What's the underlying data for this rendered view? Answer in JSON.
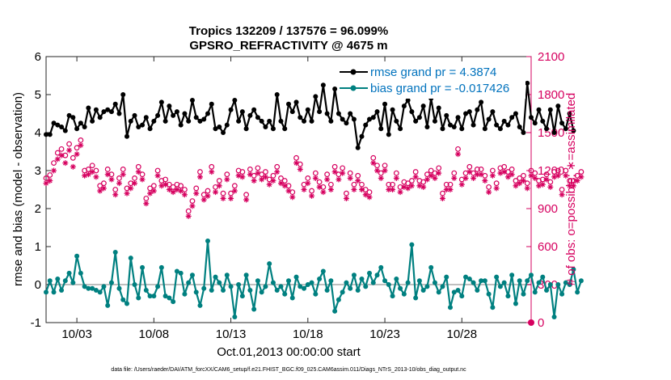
{
  "chart_data": {
    "type": "line",
    "title": "Tropics 132209 / 137576 = 96.099%",
    "subtitle": "GPSRO_REFRACTIVITY @ 4675 m",
    "xlabel": "Oct.01,2013 00:00:00 start",
    "ylabel_left": "rmse and bias (model - observation)",
    "ylabel_right": "# of obs: o=possible; ∗=assimilated",
    "footnote": "data file: /Users/raeder/DAI/ATM_forcXX/CAM6_setup/f.e21.FHIST_BGC.f09_025.CAM6assim.011/Diags_NTrS_2013-10/obs_diag_output.nc",
    "xlim": [
      1,
      32.5
    ],
    "ylim_left": [
      -1,
      6
    ],
    "ylim_right": [
      0,
      2100
    ],
    "x_ticks": [
      3,
      8,
      13,
      18,
      23,
      28
    ],
    "x_tick_labels": [
      "10/03",
      "10/08",
      "10/13",
      "10/18",
      "10/23",
      "10/28"
    ],
    "y_left_ticks": [
      -1,
      0,
      1,
      2,
      3,
      4,
      5,
      6
    ],
    "y_left_tick_labels": [
      "-1",
      "0",
      "1",
      "2",
      "3",
      "4",
      "5",
      "6"
    ],
    "y_right_ticks": [
      0,
      300,
      600,
      900,
      1200,
      1500,
      1800,
      2100
    ],
    "y_right_tick_labels": [
      "0",
      "300",
      "600",
      "900",
      "1200",
      "1500",
      "1800",
      "2100"
    ],
    "legend_position": "top-right",
    "x_start": 1.0,
    "x_step": 0.25,
    "series": [
      {
        "name": "rmse grand pr = 4.3874",
        "axis": "left",
        "color": "#000000",
        "marker": "filled-circle",
        "values": [
          3.95,
          3.95,
          4.25,
          4.2,
          4.15,
          4.05,
          4.45,
          4.4,
          4.1,
          4.25,
          4.15,
          4.65,
          4.3,
          4.6,
          4.4,
          4.55,
          4.6,
          4.55,
          4.75,
          4.5,
          5.0,
          3.9,
          4.3,
          4.45,
          4.15,
          4.2,
          4.4,
          4.1,
          4.3,
          4.45,
          4.8,
          4.3,
          4.7,
          4.45,
          4.55,
          4.2,
          4.5,
          4.3,
          4.85,
          4.4,
          4.3,
          4.35,
          4.5,
          4.75,
          4.1,
          4.15,
          4.0,
          4.2,
          4.6,
          4.85,
          4.3,
          4.55,
          4.1,
          4.45,
          4.6,
          4.4,
          4.3,
          4.15,
          4.3,
          4.1,
          5.0,
          4.3,
          4.1,
          4.75,
          4.55,
          4.8,
          4.4,
          4.3,
          4.6,
          4.3,
          4.95,
          4.55,
          5.25,
          4.5,
          4.3,
          5.15,
          4.5,
          4.35,
          4.25,
          4.5,
          4.35,
          3.6,
          3.9,
          4.2,
          4.35,
          4.4,
          4.55,
          4.1,
          4.75,
          3.95,
          4.6,
          4.3,
          4.1,
          4.7,
          4.85,
          4.55,
          4.3,
          4.4,
          4.7,
          4.15,
          4.9,
          4.3,
          4.65,
          4.1,
          4.45,
          4.2,
          4.15,
          4.4,
          4.1,
          4.5,
          4.55,
          4.2,
          4.6,
          4.8,
          4.1,
          4.35,
          4.55,
          4.2,
          4.1,
          4.3,
          4.2,
          4.4,
          4.5,
          4.15,
          4.0,
          5.3,
          4.4,
          4.25,
          4.6,
          4.3,
          4.1,
          4.6,
          4.0,
          4.7,
          4.25,
          4.1,
          4.5,
          4.05
        ]
      },
      {
        "name": "bias grand pr = -0.017426",
        "axis": "left",
        "color": "#008080",
        "marker": "filled-circle",
        "values": [
          -0.2,
          0.1,
          -0.2,
          0.15,
          -0.15,
          0.1,
          0.3,
          0.05,
          0.75,
          0.3,
          -0.05,
          -0.1,
          -0.1,
          -0.15,
          -0.2,
          -0.05,
          -0.55,
          0.05,
          0.85,
          -0.1,
          -0.4,
          -0.5,
          0.7,
          0.0,
          -0.35,
          0.45,
          -0.15,
          -0.3,
          -0.3,
          -0.05,
          0.45,
          -0.3,
          -0.35,
          -0.45,
          0.35,
          0.3,
          -0.25,
          0.05,
          0.25,
          -0.2,
          -0.55,
          -0.1,
          1.15,
          -0.15,
          0.2,
          0.05,
          -0.15,
          0.25,
          -0.05,
          -0.85,
          0.0,
          -0.3,
          0.25,
          -0.15,
          -0.65,
          0.1,
          -0.2,
          -0.05,
          0.55,
          0.05,
          -0.15,
          -0.05,
          -0.25,
          0.1,
          -0.35,
          0.2,
          -0.05,
          -0.1,
          0.0,
          0.05,
          -0.25,
          0.15,
          0.35,
          -0.15,
          0.1,
          -0.7,
          -0.4,
          -0.2,
          0.05,
          -0.1,
          0.25,
          -0.15,
          0.15,
          -0.05,
          0.3,
          0.05,
          0.25,
          0.45,
          0.1,
          0.0,
          -0.3,
          0.15,
          -0.1,
          -0.25,
          0.05,
          1.05,
          -0.35,
          0.1,
          -0.15,
          -0.05,
          0.45,
          0.05,
          -0.2,
          -0.05,
          0.2,
          -0.6,
          -0.2,
          -0.15,
          -0.3,
          0.2,
          0.15,
          0.05,
          -0.15,
          0.1,
          0.1,
          -0.25,
          -0.6,
          0.2,
          -0.05,
          0.05,
          -0.3,
          0.25,
          -0.5,
          0.1,
          -0.25,
          0.1,
          0.25,
          -0.2,
          0.05,
          0.2,
          -0.15,
          0.0,
          -0.85,
          0.0,
          -0.25,
          0.05,
          0.0,
          0.4,
          -0.2,
          0.1
        ]
      },
      {
        "name": "possible",
        "axis": "right",
        "color": "#D6005F",
        "marker": "open-circle",
        "values": [
          1140,
          1165,
          1260,
          1340,
          1370,
          1320,
          1410,
          1300,
          1380,
          1440,
          1200,
          1210,
          1240,
          1200,
          1080,
          1100,
          1210,
          1170,
          1050,
          1140,
          1210,
          1060,
          1100,
          1140,
          1230,
          1170,
          980,
          1060,
          1080,
          1200,
          1120,
          1130,
          1090,
          1070,
          1090,
          1080,
          1050,
          880,
          960,
          1060,
          1190,
          1010,
          1040,
          1230,
          1070,
          1120,
          1020,
          1170,
          1020,
          1080,
          1200,
          1190,
          1010,
          1210,
          1160,
          1220,
          1170,
          1190,
          1130,
          1160,
          1230,
          1140,
          1120,
          1080,
          1030,
          1300,
          1250,
          1090,
          1140,
          1040,
          1180,
          1110,
          1070,
          1170,
          1090,
          1230,
          1170,
          1220,
          1020,
          1180,
          1090,
          1160,
          1090,
          1050,
          1030,
          1300,
          1240,
          1180,
          1240,
          1090,
          1090,
          1180,
          1070,
          1110,
          1100,
          1120,
          1190,
          1120,
          1110,
          1170,
          1200,
          1180,
          1220,
          1020,
          1090,
          1090,
          1180,
          1370,
          1130,
          1180,
          1230,
          1180,
          1210,
          1210,
          1160,
          1070,
          1200,
          1100,
          1220,
          1230,
          1190,
          1210,
          1120,
          1140,
          1160,
          1100,
          1200,
          1180,
          1120,
          1130,
          1170,
          1110,
          1190,
          1200,
          1050,
          1200,
          1120,
          1120,
          1160,
          1190
        ]
      },
      {
        "name": "assimilated",
        "axis": "right",
        "color": "#D6005F",
        "marker": "asterisk",
        "values": [
          1100,
          1120,
          1200,
          1290,
          1320,
          1260,
          1360,
          1230,
          1330,
          1400,
          1160,
          1170,
          1190,
          1150,
          1040,
          1060,
          1170,
          1130,
          1010,
          1100,
          1170,
          1020,
          1060,
          1100,
          1190,
          1130,
          940,
          1020,
          1040,
          1160,
          1080,
          1090,
          1050,
          1030,
          1050,
          1040,
          1010,
          840,
          920,
          1020,
          1150,
          970,
          1000,
          1190,
          1030,
          1080,
          980,
          1130,
          980,
          1040,
          1160,
          1150,
          970,
          1170,
          1120,
          1180,
          1130,
          1150,
          1090,
          1120,
          1190,
          1100,
          1080,
          1040,
          990,
          1260,
          1210,
          1050,
          1100,
          1000,
          1140,
          1070,
          1030,
          1130,
          1050,
          1190,
          1130,
          1180,
          980,
          1140,
          1050,
          1120,
          1050,
          1010,
          990,
          1260,
          1200,
          1140,
          1200,
          1050,
          1050,
          1140,
          1030,
          1070,
          1060,
          1080,
          1150,
          1080,
          1070,
          1130,
          1160,
          1140,
          1180,
          980,
          1050,
          1050,
          1140,
          1330,
          1090,
          1140,
          1190,
          1140,
          1170,
          1170,
          1120,
          1030,
          1160,
          1060,
          1180,
          1190,
          1150,
          1170,
          1080,
          1100,
          1120,
          1060,
          1160,
          1140,
          1080,
          1090,
          1130,
          1070,
          1150,
          1160,
          1010,
          1160,
          1080,
          1080,
          1120,
          1150
        ]
      }
    ]
  }
}
